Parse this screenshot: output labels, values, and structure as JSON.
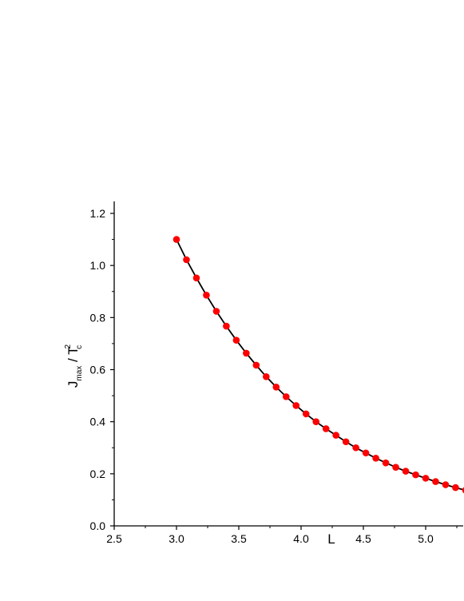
{
  "chart_data": {
    "type": "line",
    "xlabel": "L",
    "ylabel": {
      "main": "J",
      "sub1": "max",
      "slash": " / ",
      "t": "T",
      "sup": "2",
      "sub2": "c"
    },
    "xlim": [
      2.5,
      5.3
    ],
    "ylim": [
      0.0,
      1.25
    ],
    "x_ticks": [
      2.5,
      3.0,
      3.5,
      4.0,
      4.5,
      5.0
    ],
    "x_tick_labels": [
      "2.5",
      "3.0",
      "3.5",
      "4.0",
      "4.5",
      "5.0"
    ],
    "y_ticks": [
      0.0,
      0.2,
      0.4,
      0.6,
      0.8,
      1.0,
      1.2
    ],
    "y_tick_labels": [
      "0.0",
      "0.2",
      "0.4",
      "0.6",
      "0.8",
      "1.0",
      "1.2"
    ],
    "series": [
      {
        "line_color": "#000000",
        "marker_color": "#ff0000",
        "x": [
          3.0,
          3.08,
          3.16,
          3.24,
          3.32,
          3.4,
          3.48,
          3.56,
          3.64,
          3.72,
          3.8,
          3.88,
          3.96,
          4.04,
          4.12,
          4.2,
          4.28,
          4.36,
          4.44,
          4.52,
          4.6,
          4.68,
          4.76,
          4.84,
          4.92,
          5.0,
          5.08,
          5.16,
          5.24,
          5.32
        ],
        "y": [
          1.1,
          1.022,
          0.952,
          0.886,
          0.824,
          0.767,
          0.713,
          0.663,
          0.617,
          0.573,
          0.533,
          0.496,
          0.462,
          0.43,
          0.4,
          0.373,
          0.348,
          0.323,
          0.3,
          0.28,
          0.26,
          0.242,
          0.225,
          0.21,
          0.196,
          0.183,
          0.17,
          0.158,
          0.147,
          0.137
        ]
      }
    ]
  }
}
